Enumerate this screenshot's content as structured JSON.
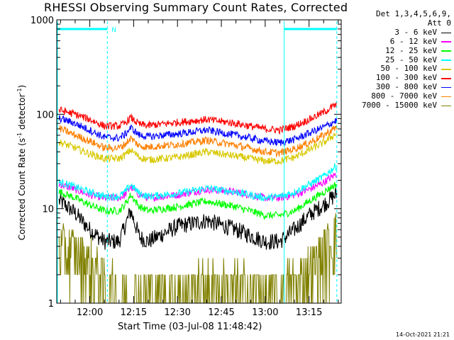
{
  "title": "RHESSI Observing Summary Count Rates, Corrected",
  "ylabel_main": "Corrected Count Rate (s",
  "ylabel_sup1": "-1",
  "ylabel_mid": " detector",
  "ylabel_sup2": "-1",
  "ylabel_end": ")",
  "xlabel": "Start Time (03-Jul-08 11:48:42)",
  "footer": "14-Oct-2021 21:21",
  "legend": {
    "header1": "Det 1,3,4,5,6,9,",
    "header2": "Att 0",
    "entries": [
      {
        "label": "3 - 6 keV",
        "color": "#000000"
      },
      {
        "label": "6 - 12 keV",
        "color": "#ff00ff"
      },
      {
        "label": "12 - 25 keV",
        "color": "#00ff00"
      },
      {
        "label": "25 - 50 keV",
        "color": "#00ffff"
      },
      {
        "label": "50 - 100 keV",
        "color": "#d8c800"
      },
      {
        "label": "100 - 300 keV",
        "color": "#ff0000"
      },
      {
        "label": "300 - 800 keV",
        "color": "#0000ff"
      },
      {
        "label": "800 - 7000 keV",
        "color": "#ff8000"
      },
      {
        "label": "7000 - 15000 keV",
        "color": "#808000"
      }
    ]
  },
  "annotations": {
    "night_marker": "N",
    "night_color": "#00ffff"
  },
  "chart_data": {
    "type": "line",
    "title": "RHESSI Observing Summary Count Rates, Corrected",
    "xlabel": "Start Time (03-Jul-08 11:48:42)",
    "ylabel": "Corrected Count Rate (s-1 detector-1)",
    "xscale": "time",
    "yscale": "log",
    "xlim": [
      "11:48:42",
      "13:26:00"
    ],
    "ylim": [
      1,
      1000
    ],
    "x_ticks": [
      "12:00",
      "12:15",
      "12:30",
      "12:45",
      "13:00",
      "13:15"
    ],
    "y_ticks": [
      "1",
      "10",
      "100",
      "1000"
    ],
    "night_periods": [
      [
        "11:48:42",
        "12:06:00"
      ],
      [
        "13:06:30",
        "13:24:30"
      ]
    ],
    "x": [
      "11:50",
      "11:55",
      "12:00",
      "12:05",
      "12:10",
      "12:12",
      "12:14",
      "12:17",
      "12:20",
      "12:30",
      "12:40",
      "12:50",
      "13:00",
      "13:05",
      "13:10",
      "13:15",
      "13:20",
      "13:24"
    ],
    "series": [
      {
        "name": "3 - 6 keV",
        "color": "#000000",
        "values": [
          12,
          9,
          6,
          4.5,
          4.5,
          6.5,
          9.5,
          5,
          4.5,
          6.5,
          7.5,
          6,
          4.5,
          4.5,
          6,
          8.5,
          11,
          14
        ]
      },
      {
        "name": "6 - 12 keV",
        "color": "#ff00ff",
        "values": [
          18,
          16,
          14,
          13,
          13,
          14,
          17,
          14,
          13,
          14,
          16,
          15,
          13,
          13,
          14,
          16,
          19,
          23
        ]
      },
      {
        "name": "12 - 25 keV",
        "color": "#00ff00",
        "values": [
          15,
          13,
          11,
          9.5,
          9.5,
          11,
          14,
          10.5,
          9.5,
          10.5,
          12,
          10.5,
          8.5,
          8.5,
          9.5,
          12,
          15,
          18
        ]
      },
      {
        "name": "25 - 50 keV",
        "color": "#00ffff",
        "values": [
          19,
          17,
          15,
          13.5,
          13.5,
          15,
          18,
          14.5,
          13.5,
          14.5,
          16.5,
          15,
          13,
          13.5,
          15,
          18,
          22,
          28
        ]
      },
      {
        "name": "50 - 100 keV",
        "color": "#d8c800",
        "values": [
          50,
          44,
          38,
          34,
          34,
          37,
          42,
          35,
          33,
          35,
          40,
          36,
          32,
          32,
          35,
          42,
          50,
          62
        ]
      },
      {
        "name": "100 - 300 keV",
        "color": "#ff0000",
        "values": [
          110,
          100,
          88,
          75,
          75,
          80,
          92,
          78,
          76,
          82,
          88,
          80,
          70,
          68,
          75,
          88,
          105,
          125
        ]
      },
      {
        "name": "300 - 800 keV",
        "color": "#0000ff",
        "values": [
          90,
          80,
          68,
          57,
          56,
          61,
          72,
          60,
          58,
          62,
          68,
          60,
          52,
          50,
          54,
          63,
          73,
          85
        ]
      },
      {
        "name": "800 - 7000 keV",
        "color": "#ff8000",
        "values": [
          70,
          60,
          52,
          44,
          44,
          48,
          56,
          46,
          45,
          48,
          53,
          47,
          40,
          39,
          43,
          50,
          60,
          72
        ]
      },
      {
        "name": "7000 - 15000 keV",
        "color": "#808000",
        "values": [
          4,
          3.5,
          2.8,
          1.6,
          1.3,
          1.1,
          1.1,
          1.0,
          1.1,
          1.3,
          1.5,
          1.4,
          1.2,
          1.3,
          1.7,
          2.3,
          3.5,
          5.5
        ]
      }
    ]
  }
}
